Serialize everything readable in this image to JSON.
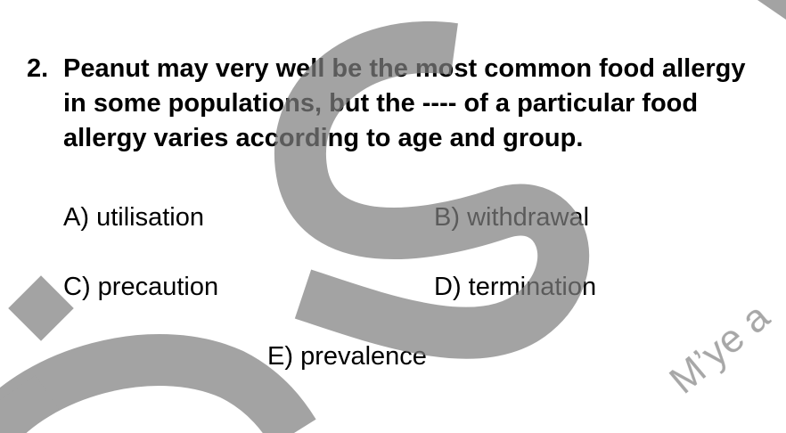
{
  "question": {
    "number": "2.",
    "text": "Peanut may very well be the most common food allergy in some populations, but the ---- of a particular food allergy varies according to age and group."
  },
  "options": [
    {
      "letter": "A)",
      "text": "utilisation"
    },
    {
      "letter": "B)",
      "text": "withdrawal"
    },
    {
      "letter": "C)",
      "text": "precaution"
    },
    {
      "letter": "D)",
      "text": "termination"
    },
    {
      "letter": "E)",
      "text": "prevalence"
    }
  ],
  "watermark": {
    "text": "M’ye a",
    "color": "#7f7f7f"
  }
}
